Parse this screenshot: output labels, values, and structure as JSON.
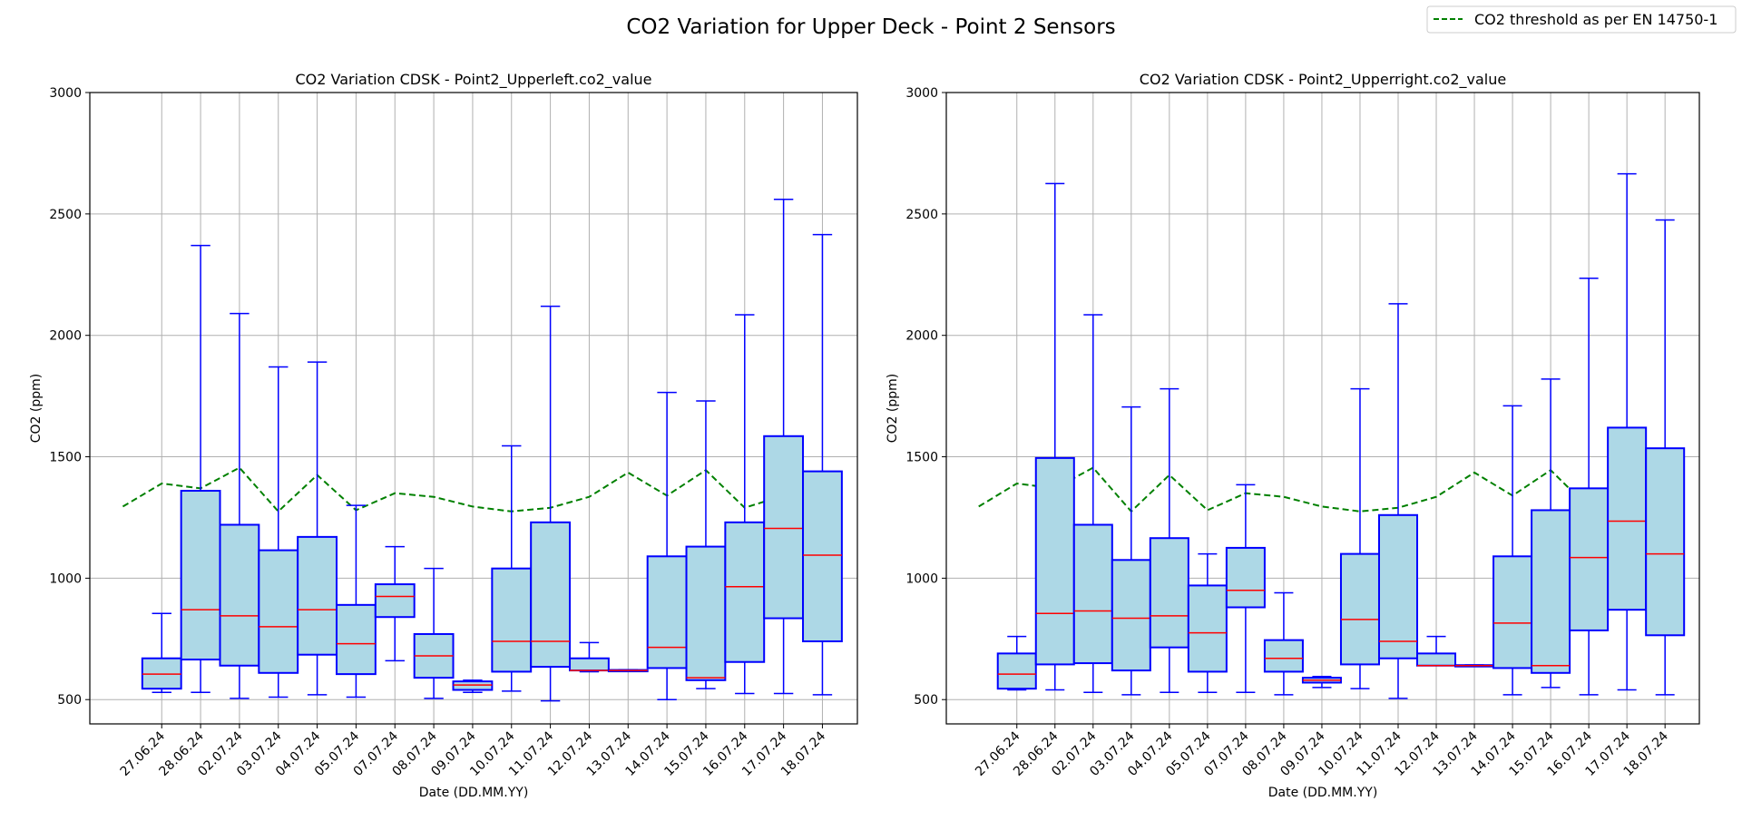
{
  "figure": {
    "suptitle": "CO2 Variation for Upper Deck - Point 2 Sensors",
    "legend": {
      "label": "CO2 threshold as per EN 14750-1",
      "color": "#008000",
      "style": "dashed",
      "placement": "top-right"
    }
  },
  "colors": {
    "box_face": "#add8e6",
    "box_edge": "#0000ff",
    "median": "#ff0000",
    "grid": "#b0b0b0",
    "threshold": "#008000"
  },
  "chart_data": [
    {
      "type": "box",
      "title": "CO2 Variation CDSK - Point2_Upperleft.co2_value",
      "xlabel": "Date (DD.MM.YY)",
      "ylabel": "CO2 (ppm)",
      "ylim": [
        400,
        3000
      ],
      "yticks": [
        500,
        1000,
        1500,
        2000,
        2500,
        3000
      ],
      "grid": true,
      "categories": [
        "27.06.24",
        "28.06.24",
        "02.07.24",
        "03.07.24",
        "04.07.24",
        "05.07.24",
        "07.07.24",
        "08.07.24",
        "09.07.24",
        "10.07.24",
        "11.07.24",
        "12.07.24",
        "13.07.24",
        "14.07.24",
        "15.07.24",
        "16.07.24",
        "17.07.24",
        "18.07.24"
      ],
      "boxes": [
        {
          "min": 530,
          "q1": 545,
          "median": 605,
          "q3": 670,
          "max": 855
        },
        {
          "min": 530,
          "q1": 665,
          "median": 870,
          "q3": 1360,
          "max": 2370
        },
        {
          "min": 505,
          "q1": 640,
          "median": 845,
          "q3": 1220,
          "max": 2090
        },
        {
          "min": 510,
          "q1": 610,
          "median": 800,
          "q3": 1115,
          "max": 1870
        },
        {
          "min": 520,
          "q1": 685,
          "median": 870,
          "q3": 1170,
          "max": 1890
        },
        {
          "min": 510,
          "q1": 605,
          "median": 730,
          "q3": 890,
          "max": 1300
        },
        {
          "min": 660,
          "q1": 840,
          "median": 925,
          "q3": 975,
          "max": 1130
        },
        {
          "min": 505,
          "q1": 590,
          "median": 680,
          "q3": 770,
          "max": 1040
        },
        {
          "min": 530,
          "q1": 540,
          "median": 560,
          "q3": 575,
          "max": 580
        },
        {
          "min": 535,
          "q1": 615,
          "median": 740,
          "q3": 1040,
          "max": 1545
        },
        {
          "min": 495,
          "q1": 635,
          "median": 740,
          "q3": 1230,
          "max": 2120
        },
        {
          "min": 615,
          "q1": 620,
          "median": 620,
          "q3": 670,
          "max": 735
        },
        {
          "min": 618,
          "q1": 619,
          "median": 620,
          "q3": 622,
          "max": 623
        },
        {
          "min": 500,
          "q1": 630,
          "median": 715,
          "q3": 1090,
          "max": 1765
        },
        {
          "min": 545,
          "q1": 580,
          "median": 590,
          "q3": 1130,
          "max": 1730
        },
        {
          "min": 525,
          "q1": 655,
          "median": 965,
          "q3": 1230,
          "max": 2085
        },
        {
          "min": 525,
          "q1": 835,
          "median": 1205,
          "q3": 1585,
          "max": 2560
        },
        {
          "min": 520,
          "q1": 740,
          "median": 1095,
          "q3": 1440,
          "max": 2415
        }
      ],
      "threshold": {
        "x": [
          "27.06.24",
          "28.06.24",
          "02.07.24",
          "03.07.24",
          "04.07.24",
          "05.07.24",
          "07.07.24",
          "08.07.24",
          "09.07.24",
          "10.07.24",
          "11.07.24",
          "12.07.24",
          "13.07.24",
          "14.07.24",
          "15.07.24",
          "16.07.24",
          "17.07.24",
          "18.07.24"
        ],
        "y": [
          1295,
          1390,
          1370,
          1455,
          1275,
          1425,
          1280,
          1350,
          1335,
          1295,
          1275,
          1290,
          1335,
          1435,
          1340,
          1445,
          1290,
          1340
        ]
      }
    },
    {
      "type": "box",
      "title": "CO2 Variation CDSK - Point2_Upperright.co2_value",
      "xlabel": "Date (DD.MM.YY)",
      "ylabel": "CO2 (ppm)",
      "ylim": [
        400,
        3000
      ],
      "yticks": [
        500,
        1000,
        1500,
        2000,
        2500,
        3000
      ],
      "grid": true,
      "categories": [
        "27.06.24",
        "28.06.24",
        "02.07.24",
        "03.07.24",
        "04.07.24",
        "05.07.24",
        "07.07.24",
        "08.07.24",
        "09.07.24",
        "10.07.24",
        "11.07.24",
        "12.07.24",
        "13.07.24",
        "14.07.24",
        "15.07.24",
        "16.07.24",
        "17.07.24",
        "18.07.24"
      ],
      "boxes": [
        {
          "min": 540,
          "q1": 545,
          "median": 605,
          "q3": 690,
          "max": 760
        },
        {
          "min": 540,
          "q1": 645,
          "median": 855,
          "q3": 1495,
          "max": 2625
        },
        {
          "min": 530,
          "q1": 650,
          "median": 865,
          "q3": 1220,
          "max": 2085
        },
        {
          "min": 520,
          "q1": 620,
          "median": 835,
          "q3": 1075,
          "max": 1705
        },
        {
          "min": 530,
          "q1": 715,
          "median": 845,
          "q3": 1165,
          "max": 1780
        },
        {
          "min": 530,
          "q1": 615,
          "median": 775,
          "q3": 970,
          "max": 1100
        },
        {
          "min": 530,
          "q1": 880,
          "median": 950,
          "q3": 1125,
          "max": 1385
        },
        {
          "min": 520,
          "q1": 615,
          "median": 670,
          "q3": 745,
          "max": 940
        },
        {
          "min": 550,
          "q1": 570,
          "median": 580,
          "q3": 590,
          "max": 595
        },
        {
          "min": 545,
          "q1": 645,
          "median": 830,
          "q3": 1100,
          "max": 1780
        },
        {
          "min": 505,
          "q1": 670,
          "median": 740,
          "q3": 1260,
          "max": 2130
        },
        {
          "min": 640,
          "q1": 640,
          "median": 640,
          "q3": 690,
          "max": 760
        },
        {
          "min": 637,
          "q1": 638,
          "median": 640,
          "q3": 642,
          "max": 643
        },
        {
          "min": 520,
          "q1": 630,
          "median": 815,
          "q3": 1090,
          "max": 1710
        },
        {
          "min": 550,
          "q1": 610,
          "median": 640,
          "q3": 1280,
          "max": 1820
        },
        {
          "min": 520,
          "q1": 785,
          "median": 1085,
          "q3": 1370,
          "max": 2235
        },
        {
          "min": 540,
          "q1": 870,
          "median": 1235,
          "q3": 1620,
          "max": 2665
        },
        {
          "min": 520,
          "q1": 765,
          "median": 1100,
          "q3": 1535,
          "max": 2475
        }
      ],
      "threshold": {
        "x": [
          "27.06.24",
          "28.06.24",
          "02.07.24",
          "03.07.24",
          "04.07.24",
          "05.07.24",
          "07.07.24",
          "08.07.24",
          "09.07.24",
          "10.07.24",
          "11.07.24",
          "12.07.24",
          "13.07.24",
          "14.07.24",
          "15.07.24",
          "16.07.24",
          "17.07.24",
          "18.07.24"
        ],
        "y": [
          1295,
          1390,
          1370,
          1455,
          1275,
          1425,
          1280,
          1350,
          1335,
          1295,
          1275,
          1290,
          1335,
          1435,
          1340,
          1445,
          1290,
          1340
        ]
      }
    }
  ]
}
